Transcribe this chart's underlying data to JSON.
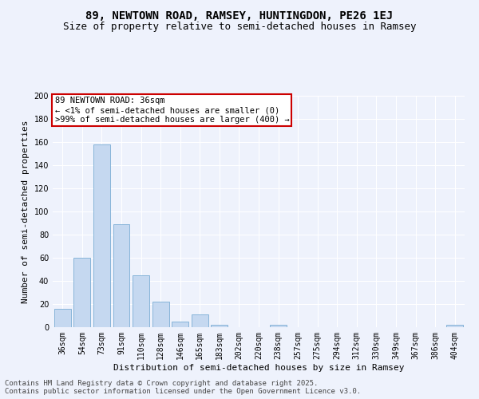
{
  "title": "89, NEWTOWN ROAD, RAMSEY, HUNTINGDON, PE26 1EJ",
  "subtitle": "Size of property relative to semi-detached houses in Ramsey",
  "xlabel": "Distribution of semi-detached houses by size in Ramsey",
  "ylabel": "Number of semi-detached properties",
  "categories": [
    "36sqm",
    "54sqm",
    "73sqm",
    "91sqm",
    "110sqm",
    "128sqm",
    "146sqm",
    "165sqm",
    "183sqm",
    "202sqm",
    "220sqm",
    "238sqm",
    "257sqm",
    "275sqm",
    "294sqm",
    "312sqm",
    "330sqm",
    "349sqm",
    "367sqm",
    "386sqm",
    "404sqm"
  ],
  "values": [
    16,
    60,
    158,
    89,
    45,
    22,
    5,
    11,
    2,
    0,
    0,
    2,
    0,
    0,
    0,
    0,
    0,
    0,
    0,
    0,
    2
  ],
  "bar_color": "#c5d8f0",
  "bar_edge_color": "#7aadd4",
  "annotation_text": "89 NEWTOWN ROAD: 36sqm\n← <1% of semi-detached houses are smaller (0)\n>99% of semi-detached houses are larger (400) →",
  "annotation_box_color": "#ffffff",
  "annotation_box_edge_color": "#cc0000",
  "ylim": [
    0,
    200
  ],
  "yticks": [
    0,
    20,
    40,
    60,
    80,
    100,
    120,
    140,
    160,
    180,
    200
  ],
  "background_color": "#eef2fc",
  "grid_color": "#ffffff",
  "footer_text": "Contains HM Land Registry data © Crown copyright and database right 2025.\nContains public sector information licensed under the Open Government Licence v3.0.",
  "title_fontsize": 10,
  "subtitle_fontsize": 9,
  "axis_label_fontsize": 8,
  "tick_fontsize": 7,
  "annotation_fontsize": 7.5,
  "footer_fontsize": 6.5
}
